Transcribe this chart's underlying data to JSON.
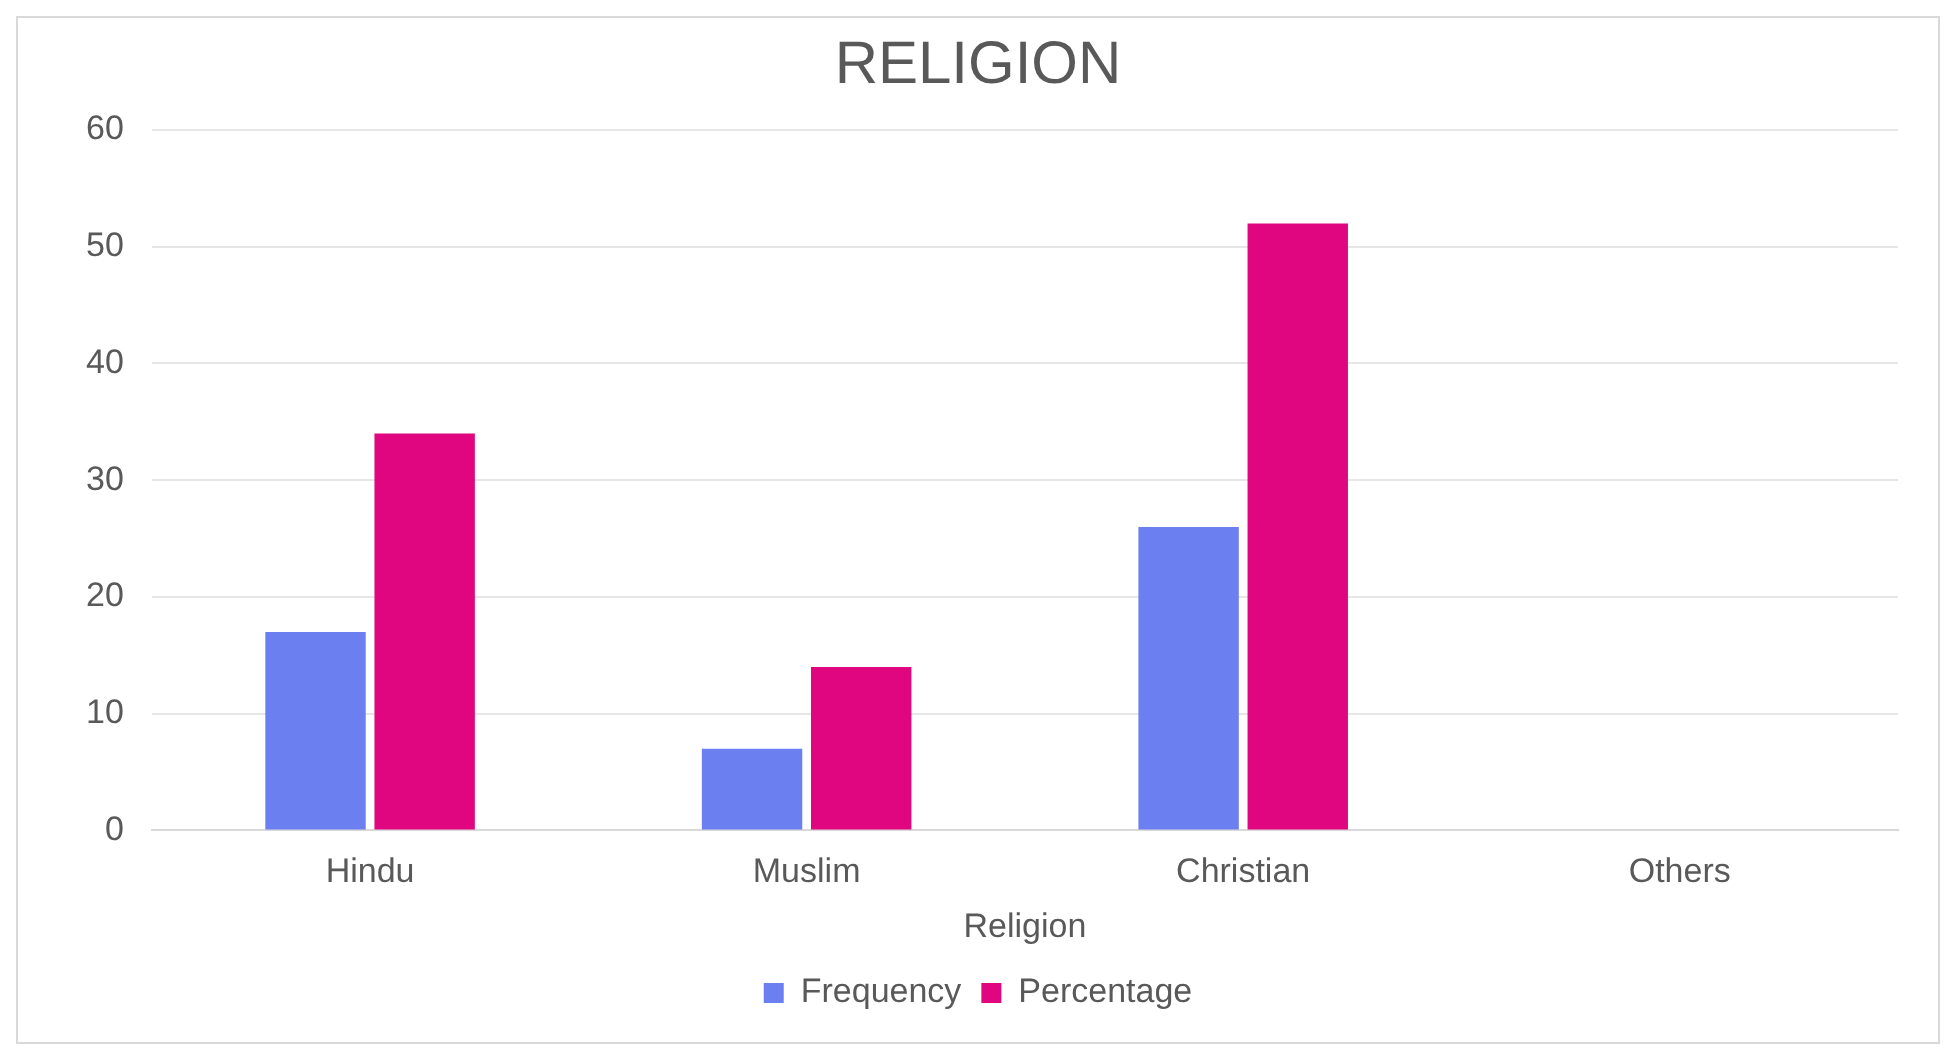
{
  "chart_data": {
    "type": "bar",
    "title": "RELIGION",
    "xlabel": "Religion",
    "categories": [
      "Hindu",
      "Muslim",
      "Christian",
      "Others"
    ],
    "series": [
      {
        "name": "Frequency",
        "color": "#6b7ff0",
        "values": [
          17,
          7,
          26,
          0
        ]
      },
      {
        "name": "Percentage",
        "color": "#e0067f",
        "values": [
          34,
          14,
          52,
          0
        ]
      }
    ],
    "ylim": [
      0,
      60
    ],
    "yticks": [
      0,
      10,
      20,
      30,
      40,
      50,
      60
    ],
    "grid": "y",
    "legend": "bottom"
  }
}
